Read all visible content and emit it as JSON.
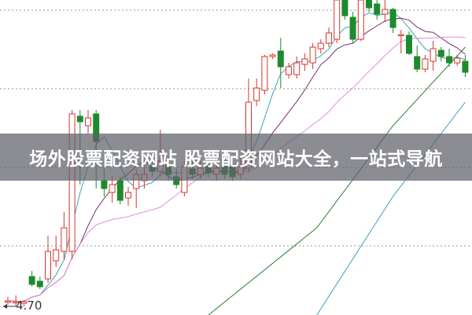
{
  "title": "场外股票配资网站 股票配资网站大全，一站式导航",
  "chart_data": {
    "type": "candlestick",
    "grid": true,
    "grid_style": "dotted horizontal",
    "ylim": [
      4.645,
      6.65
    ],
    "colors": {
      "up": "#d9342b",
      "down": "#1e8a2e",
      "ma5": "#3aa6b0",
      "ma10": "#7a2d6e",
      "ma20": "#e08ee0",
      "ma_green": "#2e7d3a",
      "ma_blue": "#3a9fc0",
      "grid": "#999999"
    },
    "annotations": [
      {
        "text": "4.70",
        "price": 4.7,
        "marker": "left-arrow"
      }
    ],
    "candles": [
      [
        4.735,
        4.76,
        4.71,
        4.735
      ],
      [
        4.725,
        4.77,
        4.7,
        4.73
      ],
      [
        4.72,
        4.74,
        4.7,
        4.73
      ],
      [
        4.89,
        4.925,
        4.825,
        4.84
      ],
      [
        4.86,
        4.89,
        4.81,
        4.825
      ],
      [
        4.875,
        5.15,
        4.85,
        5.05
      ],
      [
        4.99,
        5.15,
        4.95,
        5.06
      ],
      [
        5.05,
        5.3,
        5.0,
        5.2
      ],
      [
        5.05,
        5.95,
        5.0,
        5.925
      ],
      [
        5.91,
        5.95,
        5.475,
        5.875
      ],
      [
        5.85,
        5.95,
        5.8,
        5.9
      ],
      [
        5.925,
        5.95,
        5.45,
        5.75
      ],
      [
        5.5,
        5.575,
        5.4,
        5.45
      ],
      [
        5.425,
        5.525,
        5.36,
        5.475
      ],
      [
        5.5,
        5.525,
        5.35,
        5.375
      ],
      [
        5.39,
        5.46,
        5.34,
        5.425
      ],
      [
        5.45,
        5.575,
        5.325,
        5.54
      ],
      [
        5.5,
        5.6,
        5.45,
        5.54
      ],
      [
        5.59,
        5.625,
        5.525,
        5.56
      ],
      [
        5.56,
        5.825,
        5.525,
        5.625
      ],
      [
        5.6,
        5.65,
        5.5,
        5.54
      ],
      [
        5.525,
        5.575,
        5.45,
        5.475
      ],
      [
        5.425,
        5.625,
        5.4,
        5.59
      ],
      [
        5.575,
        5.625,
        5.51,
        5.54
      ],
      [
        5.54,
        5.625,
        5.51,
        5.58
      ],
      [
        5.59,
        5.65,
        5.52,
        5.55
      ],
      [
        5.54,
        5.625,
        5.5,
        5.58
      ],
      [
        5.59,
        5.65,
        5.51,
        5.54
      ],
      [
        5.6,
        5.625,
        5.5,
        5.525
      ],
      [
        5.54,
        5.65,
        5.51,
        5.59
      ],
      [
        5.58,
        6.15,
        5.55,
        6.0
      ],
      [
        6.01,
        6.15,
        5.975,
        6.09
      ],
      [
        6.075,
        6.3,
        6.05,
        6.29
      ],
      [
        6.29,
        6.31,
        6.275,
        6.3
      ],
      [
        6.325,
        6.41,
        6.09,
        6.225
      ],
      [
        6.175,
        6.25,
        6.15,
        6.225
      ],
      [
        6.175,
        6.29,
        6.15,
        6.25
      ],
      [
        6.24,
        6.31,
        6.2,
        6.275
      ],
      [
        6.25,
        6.375,
        6.21,
        6.35
      ],
      [
        6.34,
        6.4,
        6.31,
        6.375
      ],
      [
        6.375,
        6.475,
        6.35,
        6.44
      ],
      [
        6.4,
        6.65,
        6.375,
        6.65
      ],
      [
        6.65,
        6.65,
        6.525,
        6.55
      ],
      [
        6.54,
        6.575,
        6.375,
        6.4
      ],
      [
        6.4,
        6.65,
        6.39,
        6.65
      ],
      [
        6.65,
        6.65,
        6.575,
        6.6
      ],
      [
        6.625,
        6.65,
        6.525,
        6.56
      ],
      [
        6.56,
        6.65,
        6.51,
        6.59
      ],
      [
        6.59,
        6.6,
        6.44,
        6.475
      ],
      [
        6.425,
        6.46,
        6.31,
        6.43
      ],
      [
        6.425,
        6.45,
        6.3,
        6.31
      ],
      [
        6.29,
        6.36,
        6.19,
        6.21
      ],
      [
        6.21,
        6.3,
        6.19,
        6.275
      ],
      [
        6.26,
        6.39,
        6.2,
        6.34
      ],
      [
        6.33,
        6.35,
        6.26,
        6.29
      ],
      [
        6.29,
        6.34,
        6.225,
        6.25
      ],
      [
        6.25,
        6.3,
        6.23,
        6.28
      ],
      [
        6.26,
        6.3,
        6.16,
        6.19
      ]
    ],
    "candle_fields": [
      "open",
      "high",
      "low",
      "close"
    ],
    "moving_averages": [
      5,
      10,
      20
    ],
    "long_lines": [
      {
        "color_key": "ma_green",
        "points": [
          [
            25,
            4.645
          ],
          [
            38.5,
            5.2
          ],
          [
            48,
            5.85
          ],
          [
            57,
            6.35
          ]
        ]
      },
      {
        "color_key": "ma_blue",
        "points": [
          [
            38.5,
            4.645
          ],
          [
            48,
            5.4
          ],
          [
            57,
            6.0
          ]
        ]
      }
    ],
    "grid_levels": [
      6.585,
      6.085,
      5.585,
      5.085
    ]
  }
}
